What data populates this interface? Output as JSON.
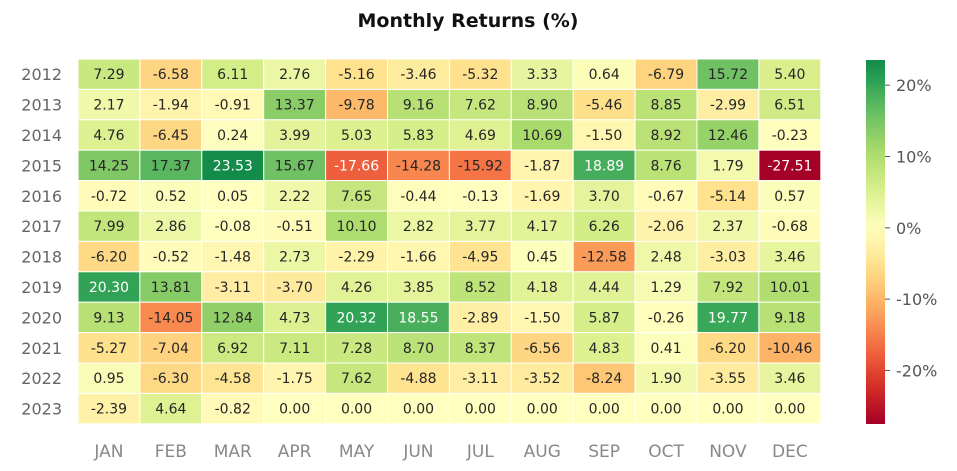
{
  "chart_data": {
    "type": "heatmap",
    "title": "Monthly Returns (%)",
    "xlabel": "",
    "ylabel": "",
    "categories": [
      "JAN",
      "FEB",
      "MAR",
      "APR",
      "MAY",
      "JUN",
      "JUL",
      "AUG",
      "SEP",
      "OCT",
      "NOV",
      "DEC"
    ],
    "rows": [
      "2012",
      "2013",
      "2014",
      "2015",
      "2016",
      "2017",
      "2018",
      "2019",
      "2020",
      "2021",
      "2022",
      "2023"
    ],
    "values": [
      [
        7.29,
        -6.58,
        6.11,
        2.76,
        -5.16,
        -3.46,
        -5.32,
        3.33,
        0.64,
        -6.79,
        15.72,
        5.4
      ],
      [
        2.17,
        -1.94,
        -0.91,
        13.37,
        -9.78,
        9.16,
        7.62,
        8.9,
        -5.46,
        8.85,
        -2.99,
        6.51
      ],
      [
        4.76,
        -6.45,
        0.24,
        3.99,
        5.03,
        5.83,
        4.69,
        10.69,
        -1.5,
        8.92,
        12.46,
        -0.23
      ],
      [
        14.25,
        17.37,
        23.53,
        15.67,
        -17.66,
        -14.28,
        -15.92,
        -1.87,
        18.89,
        8.76,
        1.79,
        -27.51
      ],
      [
        -0.72,
        0.52,
        0.05,
        2.22,
        7.65,
        -0.44,
        -0.13,
        -1.69,
        3.7,
        -0.67,
        -5.14,
        0.57
      ],
      [
        7.99,
        2.86,
        -0.08,
        -0.51,
        10.1,
        2.82,
        3.77,
        4.17,
        6.26,
        -2.06,
        2.37,
        -0.68
      ],
      [
        -6.2,
        -0.52,
        -1.48,
        2.73,
        -2.29,
        -1.66,
        -4.95,
        0.45,
        -12.58,
        2.48,
        -3.03,
        3.46
      ],
      [
        20.3,
        13.81,
        -3.11,
        -3.7,
        4.26,
        3.85,
        8.52,
        4.18,
        4.44,
        1.29,
        7.92,
        10.01
      ],
      [
        9.13,
        -14.05,
        12.84,
        4.73,
        20.32,
        18.55,
        -2.89,
        -1.5,
        5.87,
        -0.26,
        19.77,
        9.18
      ],
      [
        -5.27,
        -7.04,
        6.92,
        7.11,
        7.28,
        8.7,
        8.37,
        -6.56,
        4.83,
        0.41,
        -6.2,
        -10.46
      ],
      [
        0.95,
        -6.3,
        -4.58,
        -1.75,
        7.62,
        -4.88,
        -3.11,
        -3.52,
        -8.24,
        1.9,
        -3.55,
        3.46
      ],
      [
        -2.39,
        4.64,
        -0.82,
        0.0,
        0.0,
        0.0,
        0.0,
        0.0,
        0.0,
        0.0,
        0.0,
        0.0
      ]
    ],
    "value_labels": [
      [
        "7.29",
        "-6.58",
        "6.11",
        "2.76",
        "-5.16",
        "-3.46",
        "-5.32",
        "3.33",
        "0.64",
        "-6.79",
        "15.72",
        "5.40"
      ],
      [
        "2.17",
        "-1.94",
        "-0.91",
        "13.37",
        "-9.78",
        "9.16",
        "7.62",
        "8.90",
        "-5.46",
        "8.85",
        "-2.99",
        "6.51"
      ],
      [
        "4.76",
        "-6.45",
        "0.24",
        "3.99",
        "5.03",
        "5.83",
        "4.69",
        "10.69",
        "-1.50",
        "8.92",
        "12.46",
        "-0.23"
      ],
      [
        "14.25",
        "17.37",
        "23.53",
        "15.67",
        "-17.66",
        "-14.28",
        "-15.92",
        "-1.87",
        "18.89",
        "8.76",
        "1.79",
        "-27.51"
      ],
      [
        "-0.72",
        "0.52",
        "0.05",
        "2.22",
        "7.65",
        "-0.44",
        "-0.13",
        "-1.69",
        "3.70",
        "-0.67",
        "-5.14",
        "0.57"
      ],
      [
        "7.99",
        "2.86",
        "-0.08",
        "-0.51",
        "10.10",
        "2.82",
        "3.77",
        "4.17",
        "6.26",
        "-2.06",
        "2.37",
        "-0.68"
      ],
      [
        "-6.20",
        "-0.52",
        "-1.48",
        "2.73",
        "-2.29",
        "-1.66",
        "-4.95",
        "0.45",
        "-12.58",
        "2.48",
        "-3.03",
        "3.46"
      ],
      [
        "20.30",
        "13.81",
        "-3.11",
        "-3.70",
        "4.26",
        "3.85",
        "8.52",
        "4.18",
        "4.44",
        "1.29",
        "7.92",
        "10.01"
      ],
      [
        "9.13",
        "-14.05",
        "12.84",
        "4.73",
        "20.32",
        "18.55",
        "-2.89",
        "-1.50",
        "5.87",
        "-0.26",
        "19.77",
        "9.18"
      ],
      [
        "-5.27",
        "-7.04",
        "6.92",
        "7.11",
        "7.28",
        "8.70",
        "8.37",
        "-6.56",
        "4.83",
        "0.41",
        "-6.20",
        "-10.46"
      ],
      [
        "0.95",
        "-6.30",
        "-4.58",
        "-1.75",
        "7.62",
        "-4.88",
        "-3.11",
        "-3.52",
        "-8.24",
        "1.90",
        "-3.55",
        "3.46"
      ],
      [
        "-2.39",
        "4.64",
        "-0.82",
        "0.00",
        "0.00",
        "0.00",
        "0.00",
        "0.00",
        "0.00",
        "0.00",
        "0.00",
        "0.00"
      ]
    ],
    "color_scale": {
      "name": "RdYlGn",
      "center": 0,
      "vmin": -27.51,
      "vmax": 23.53,
      "ticks": [
        20,
        10,
        0,
        -10,
        -20
      ],
      "tick_labels": [
        "20%",
        "10%",
        "0%",
        "-10%",
        "-20%"
      ]
    },
    "grid": false,
    "legend": "colorbar-right"
  }
}
